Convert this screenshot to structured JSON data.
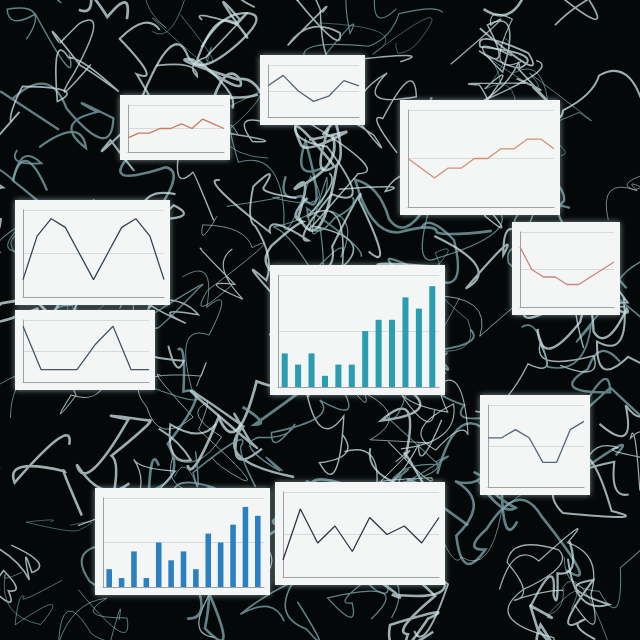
{
  "chart_data": [
    {
      "type": "line",
      "categories": [
        null,
        null,
        null,
        null,
        null,
        null,
        null,
        null,
        null,
        null
      ],
      "values": [
        3,
        4,
        4,
        5,
        5,
        6,
        5,
        7,
        6,
        5
      ],
      "color": "#c87a5a",
      "ylim": [
        0,
        10
      ],
      "yticks": [
        0,
        5,
        10
      ],
      "grid": true,
      "tick_labels": false
    },
    {
      "type": "line",
      "categories": [
        null,
        null,
        null,
        null,
        null,
        null,
        null
      ],
      "values": [
        6,
        8,
        5,
        3,
        4,
        7,
        6
      ],
      "color": "#556677",
      "ylim": [
        0,
        10
      ],
      "yticks": [
        0,
        5,
        10
      ],
      "grid": true,
      "tick_labels": false
    },
    {
      "type": "line",
      "categories": [
        null,
        null,
        null,
        null,
        null,
        null,
        null,
        null,
        null,
        null,
        null,
        null
      ],
      "values": [
        5,
        4,
        3,
        4,
        4,
        5,
        5,
        6,
        6,
        7,
        7,
        6
      ],
      "color": "#d09070",
      "ylim": [
        0,
        10
      ],
      "yticks": [
        0,
        5,
        10
      ],
      "grid": true,
      "tick_labels": false
    },
    {
      "type": "line",
      "categories": [
        null,
        null,
        null,
        null,
        null,
        null,
        null,
        null,
        null,
        null,
        null
      ],
      "values": [
        2,
        7,
        9,
        8,
        5,
        2,
        5,
        8,
        9,
        7,
        2
      ],
      "color": "#334455",
      "ylim": [
        0,
        10
      ],
      "yticks": [
        0,
        5,
        10
      ],
      "grid": true,
      "tick_labels": false
    },
    {
      "type": "bar",
      "categories": [
        null,
        null,
        null,
        null,
        null,
        null,
        null,
        null,
        null,
        null,
        null,
        null
      ],
      "values": [
        3,
        2,
        3,
        1,
        2,
        2,
        5,
        6,
        6,
        8,
        7,
        9
      ],
      "color": "#2a9db0",
      "ylim": [
        0,
        10
      ],
      "yticks": [
        0,
        5,
        10
      ],
      "grid": true,
      "tick_labels": false
    },
    {
      "type": "line",
      "categories": [
        null,
        null,
        null,
        null,
        null,
        null,
        null,
        null,
        null
      ],
      "values": [
        8,
        5,
        4,
        4,
        3,
        3,
        4,
        5,
        6
      ],
      "color": "#d08080",
      "ylim": [
        0,
        10
      ],
      "yticks": [
        0,
        5,
        10
      ],
      "grid": true,
      "tick_labels": false
    },
    {
      "type": "line",
      "categories": [
        null,
        null,
        null,
        null,
        null,
        null,
        null,
        null
      ],
      "values": [
        9,
        2,
        2,
        2,
        6,
        9,
        2,
        2
      ],
      "color": "#445566",
      "ylim": [
        0,
        10
      ],
      "yticks": [
        0,
        5,
        10
      ],
      "grid": true,
      "tick_labels": false
    },
    {
      "type": "line",
      "categories": [
        null,
        null,
        null,
        null,
        null,
        null,
        null,
        null
      ],
      "values": [
        6,
        6,
        7,
        6,
        3,
        3,
        7,
        8
      ],
      "color": "#556677",
      "ylim": [
        0,
        10
      ],
      "yticks": [
        0,
        5,
        10
      ],
      "grid": true,
      "tick_labels": false
    },
    {
      "type": "bar",
      "categories": [
        null,
        null,
        null,
        null,
        null,
        null,
        null,
        null,
        null,
        null,
        null,
        null,
        null
      ],
      "values": [
        2,
        1,
        4,
        1,
        5,
        3,
        4,
        2,
        6,
        5,
        7,
        9,
        8
      ],
      "color": "#2a80c0",
      "ylim": [
        0,
        10
      ],
      "yticks": [
        0,
        5,
        10
      ],
      "grid": true,
      "tick_labels": false
    },
    {
      "type": "line",
      "categories": [
        null,
        null,
        null,
        null,
        null,
        null,
        null,
        null,
        null,
        null
      ],
      "values": [
        2,
        8,
        4,
        6,
        3,
        7,
        5,
        6,
        4,
        7
      ],
      "color": "#333344",
      "ylim": [
        0,
        10
      ],
      "yticks": [
        0,
        5,
        10
      ],
      "grid": true,
      "tick_labels": false
    }
  ]
}
